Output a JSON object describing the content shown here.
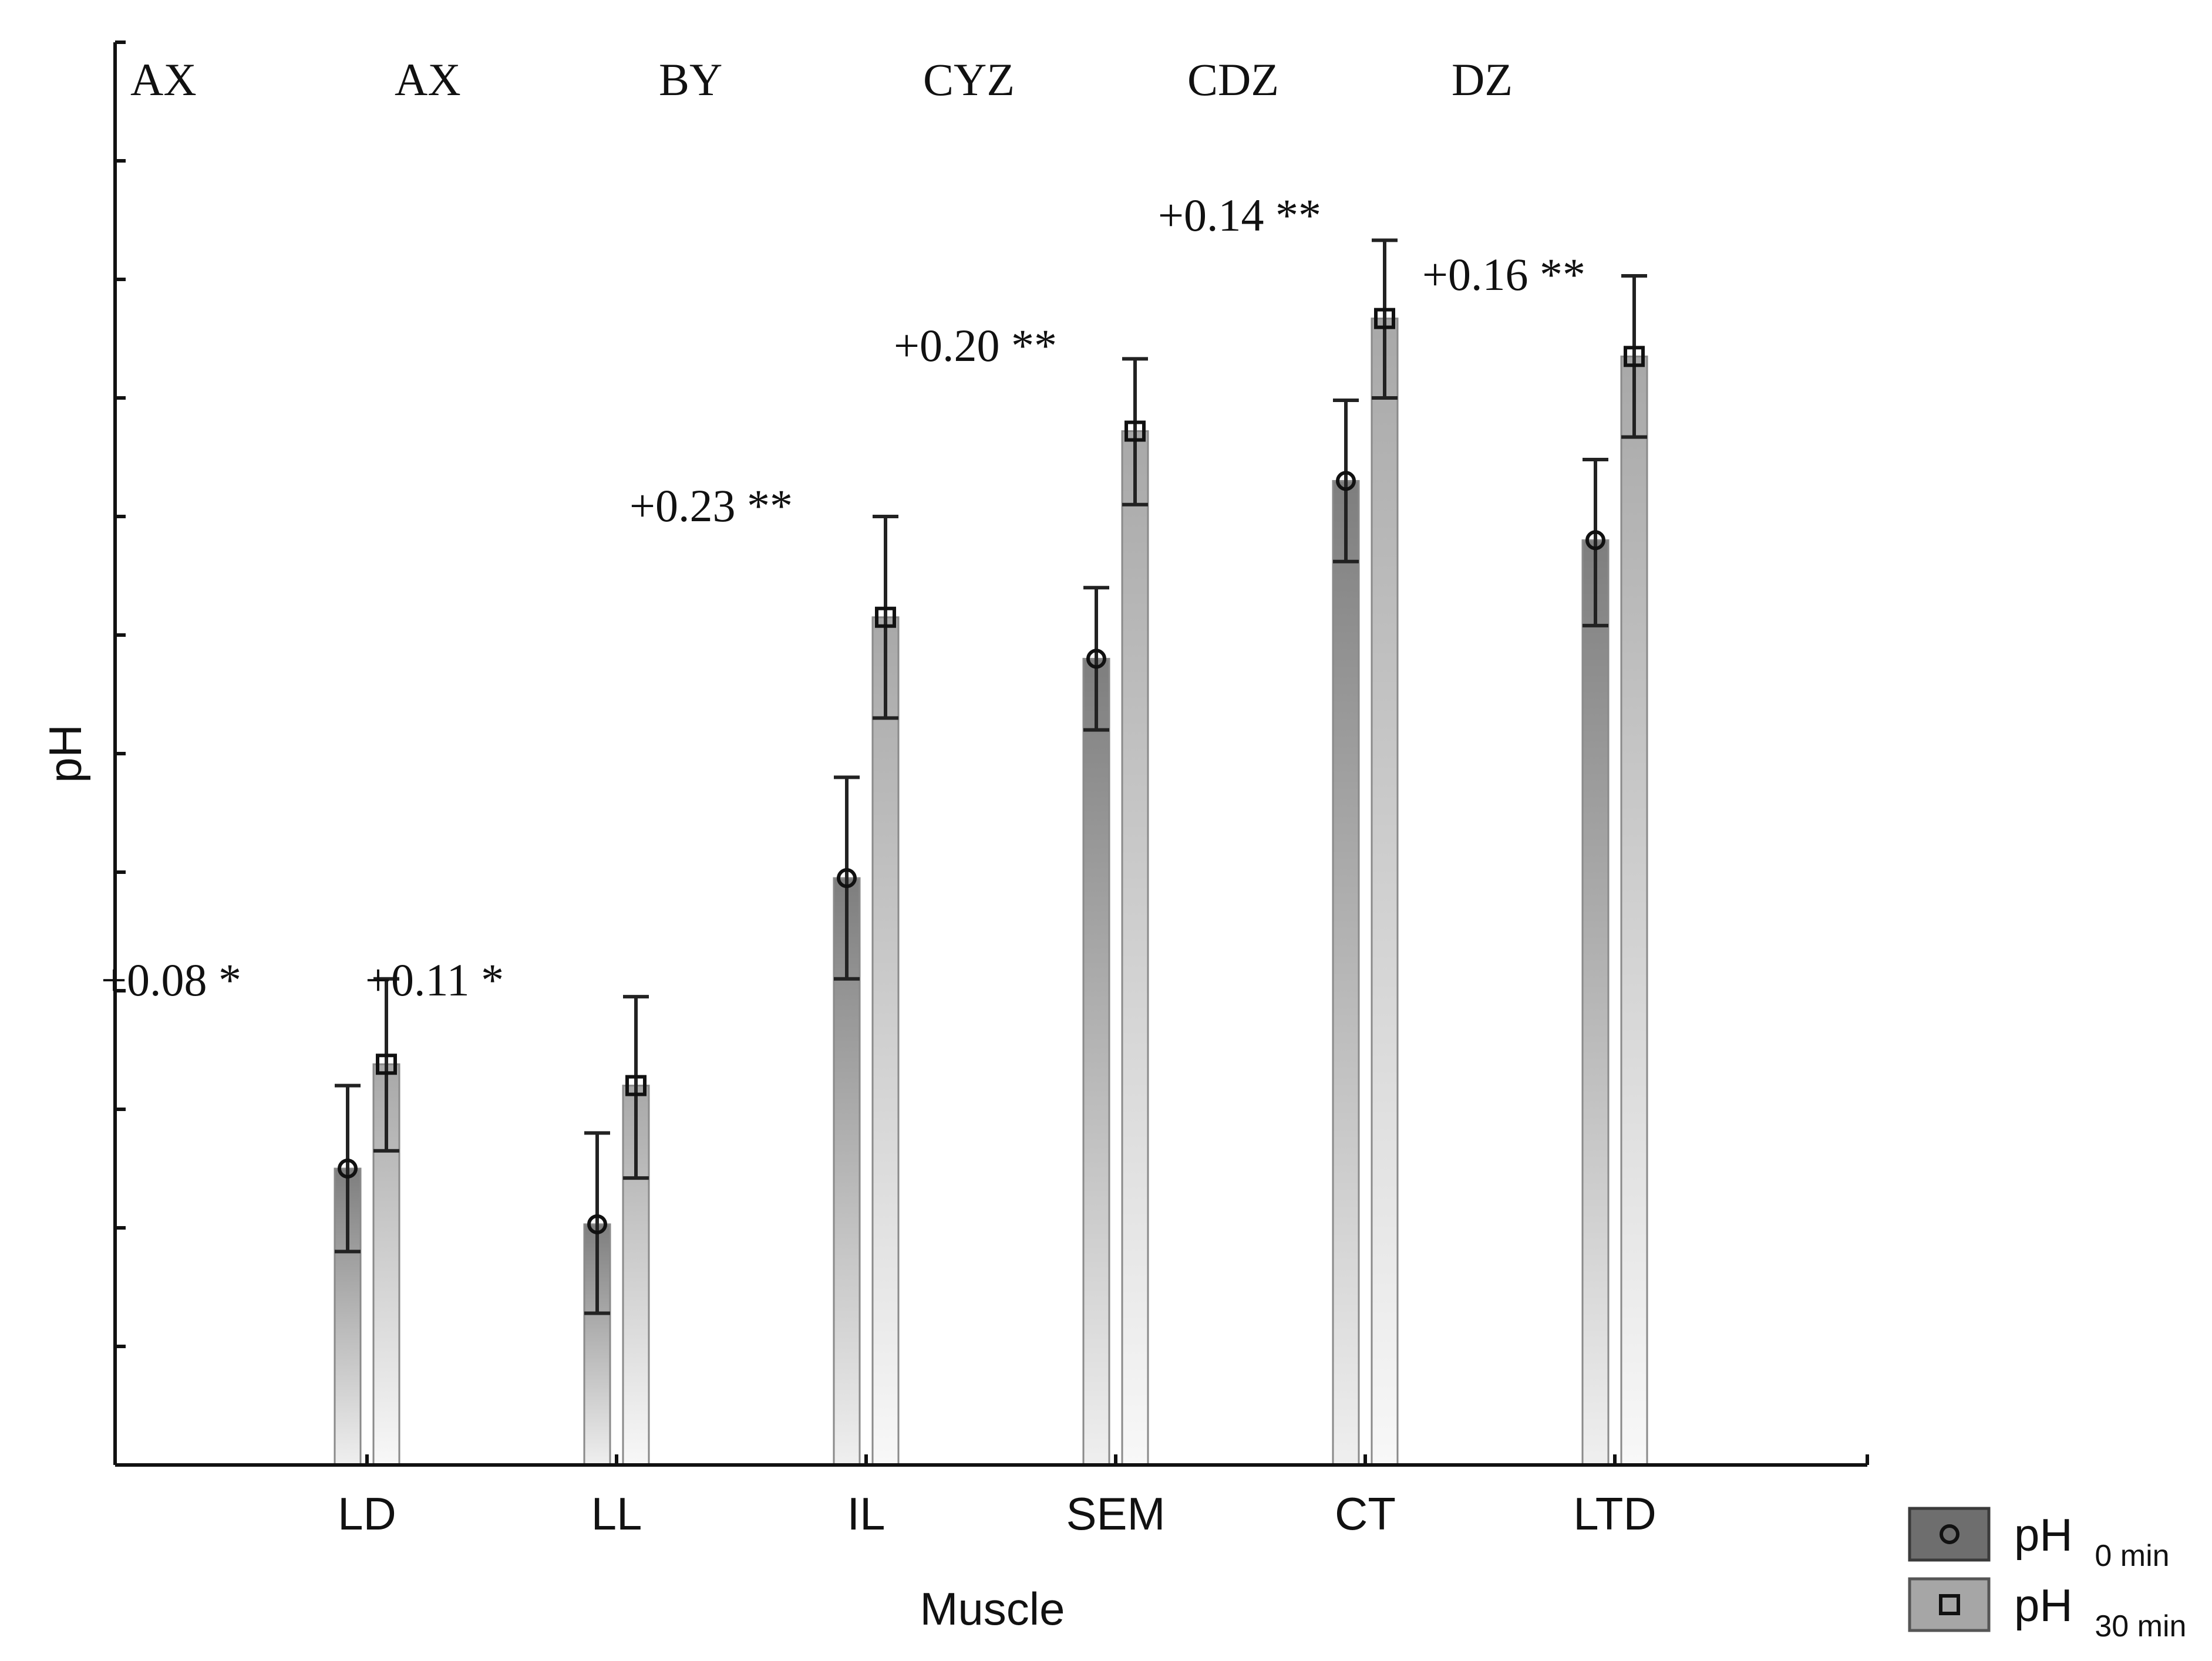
{
  "chart_data": {
    "type": "bar",
    "title": "",
    "xlabel": "Muscle",
    "ylabel": "pH",
    "ylim": [
      0,
      12
    ],
    "y_ticks_labeled": false,
    "categories": [
      "LD",
      "LL",
      "IL",
      "SEM",
      "CT",
      "LTD"
    ],
    "series": [
      {
        "name": "pH",
        "name_sub": "0 min",
        "marker": "circle",
        "values": [
          2.5,
          2.03,
          4.95,
          6.8,
          8.3,
          7.8
        ],
        "err_low": [
          1.8,
          1.28,
          4.1,
          6.2,
          7.62,
          7.08
        ],
        "err_high": [
          3.2,
          2.8,
          5.8,
          7.4,
          8.98,
          8.48
        ]
      },
      {
        "name": "pH",
        "name_sub": "30 min",
        "marker": "square",
        "values": [
          3.38,
          3.2,
          7.15,
          8.72,
          9.67,
          9.35
        ],
        "err_low": [
          2.65,
          2.42,
          6.3,
          8.1,
          9.0,
          8.67
        ],
        "err_high": [
          4.1,
          3.95,
          8.0,
          9.33,
          10.33,
          10.03
        ]
      }
    ],
    "annotations": [
      {
        "text": "+0.08 *",
        "x": 0.0,
        "y": 4.1
      },
      {
        "text": "+0.11 *",
        "x": 1.0,
        "y": 4.1
      },
      {
        "text": "+0.23 **",
        "x": 2.0,
        "y": 8.1
      },
      {
        "text": "+0.20 **",
        "x": 3.0,
        "y": 9.45
      },
      {
        "text": "+0.14 **",
        "x": 4.0,
        "y": 10.55
      },
      {
        "text": "+0.16 **",
        "x": 5.0,
        "y": 10.05
      }
    ],
    "group_letters": [
      {
        "text": "AX",
        "x": 0.0
      },
      {
        "text": "AX",
        "x": 1.0
      },
      {
        "text": "BY",
        "x": 2.0
      },
      {
        "text": "CYZ",
        "x": 3.0
      },
      {
        "text": "CDZ",
        "x": 4.0
      },
      {
        "text": "DZ",
        "x": 5.0
      }
    ],
    "legend_position": "bottom-right"
  }
}
